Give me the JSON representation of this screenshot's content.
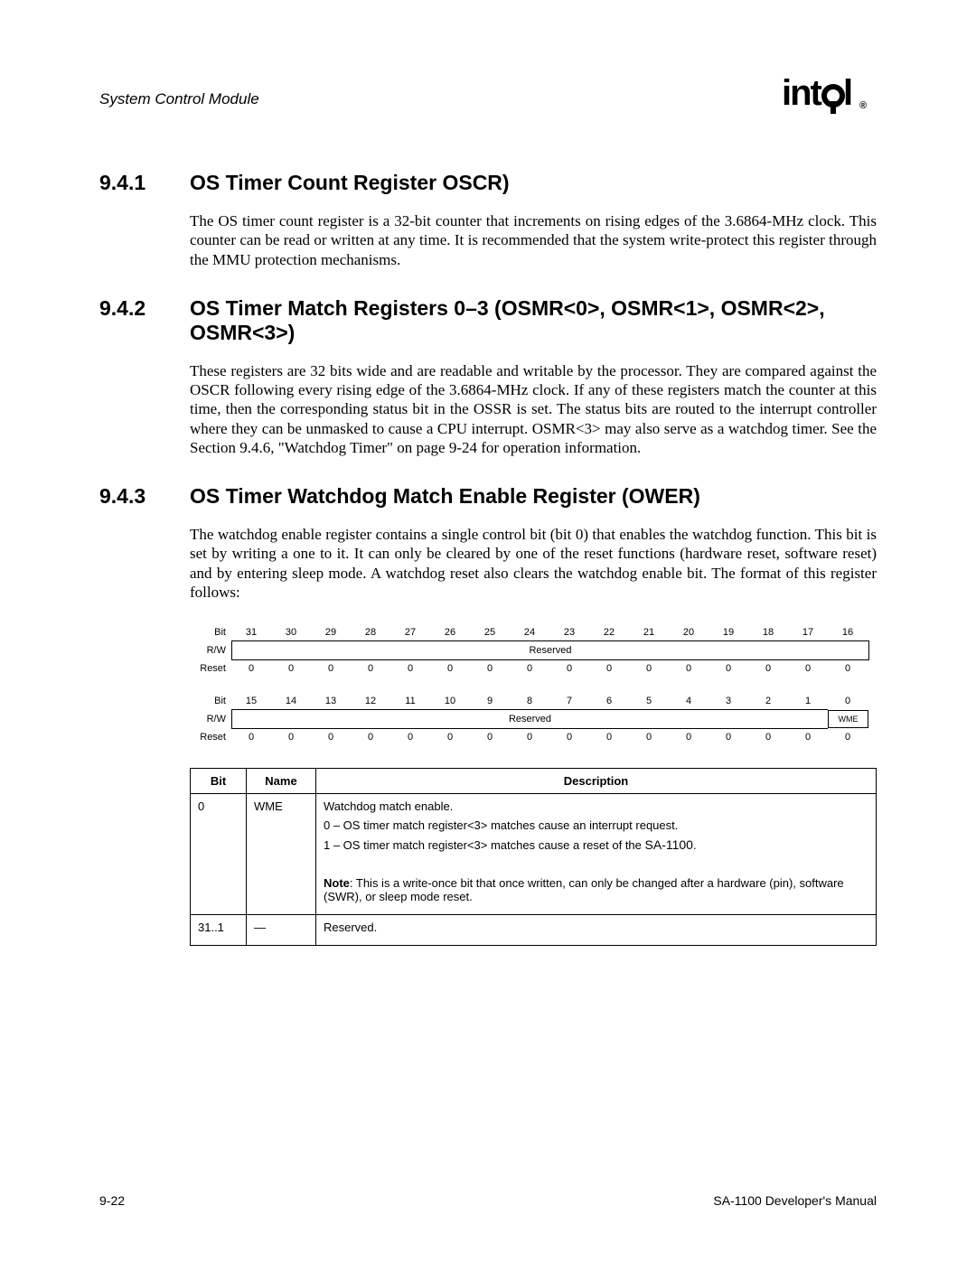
{
  "header": {
    "left": "System Control Module",
    "logo_text": "intel",
    "reg_mark": "®"
  },
  "sections": {
    "s1": {
      "num": "9.4.1",
      "title": "OS Timer Count Register OSCR)",
      "body": "The OS timer count register is a 32-bit counter that increments on rising edges of the 3.6864-MHz clock. This counter can be read or written at any time. It is recommended that the system write-protect this register through the MMU protection mechanisms."
    },
    "s2": {
      "num": "9.4.2",
      "title": "OS Timer Match Registers 0–3 (OSMR<0>, OSMR<1>, OSMR<2>, OSMR<3>)",
      "body": "These registers are 32 bits wide and are readable and writable by the processor. They are compared against the OSCR following every rising edge of the 3.6864-MHz clock. If any of these registers match the counter at this time, then the corresponding status bit in the OSSR is set. The status bits are routed to the interrupt controller where they can be unmasked to cause a CPU interrupt. OSMR<3> may also serve as a watchdog timer. See the Section 9.4.6, \"Watchdog Timer\" on page 9-24 for operation information."
    },
    "s3": {
      "num": "9.4.3",
      "title": "OS Timer Watchdog Match Enable Register (OWER)",
      "body": "The watchdog enable register contains a single control bit (bit 0) that enables the watchdog function. This bit is set by writing a one to it. It can only be cleared by one of the reset functions (hardware reset, software reset) and by entering sleep mode. A watchdog reset also clears the watchdog enable bit. The format of this register follows:"
    }
  },
  "diagram": {
    "row_labels": {
      "bit": "Bit",
      "rw": "R/W",
      "reset": "Reset"
    },
    "high_bits": [
      "31",
      "30",
      "29",
      "28",
      "27",
      "26",
      "25",
      "24",
      "23",
      "22",
      "21",
      "20",
      "19",
      "18",
      "17",
      "16"
    ],
    "high_rw": "Reserved",
    "high_reset": [
      "0",
      "0",
      "0",
      "0",
      "0",
      "0",
      "0",
      "0",
      "0",
      "0",
      "0",
      "0",
      "0",
      "0",
      "0",
      "0"
    ],
    "low_bits": [
      "15",
      "14",
      "13",
      "12",
      "11",
      "10",
      "9",
      "8",
      "7",
      "6",
      "5",
      "4",
      "3",
      "2",
      "1",
      "0"
    ],
    "low_rw_span": "Reserved",
    "low_rw_last": "WME",
    "low_reset": [
      "0",
      "0",
      "0",
      "0",
      "0",
      "0",
      "0",
      "0",
      "0",
      "0",
      "0",
      "0",
      "0",
      "0",
      "0",
      "0"
    ]
  },
  "desc_table": {
    "headers": {
      "bit": "Bit",
      "name": "Name",
      "desc": "Description"
    },
    "rows": [
      {
        "bit": "0",
        "name": "WME",
        "lines": [
          "Watchdog match enable.",
          "0 – OS timer match register<3> matches cause an interrupt request.",
          "1 – OS timer match register<3> matches cause a reset of the SA-1100.",
          "",
          "Note: This is a write-once bit that once written, can only be changed after a hardware (pin), software (SWR), or sleep mode reset."
        ]
      },
      {
        "bit": "31..1",
        "name": "—",
        "lines": [
          "Reserved."
        ]
      }
    ]
  },
  "footer": {
    "left": "9-22",
    "right": "SA-1100  Developer's Manual"
  }
}
